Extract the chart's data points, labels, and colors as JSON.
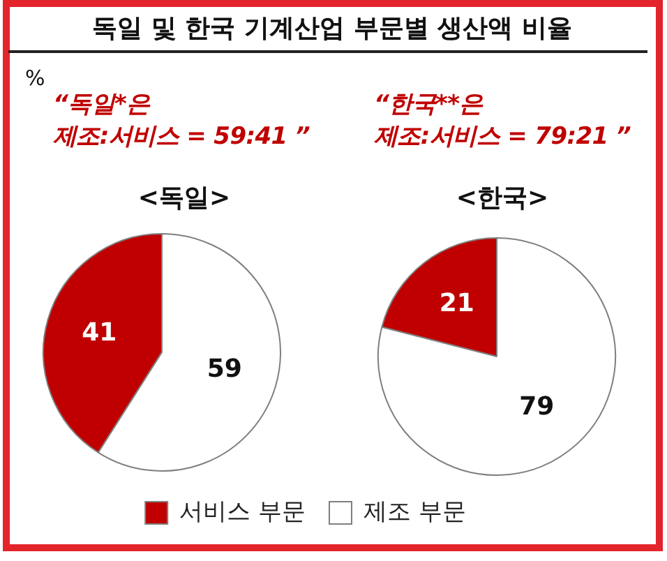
{
  "chart_data": {
    "type": "pie",
    "title": "독일 및 한국 기계산업 부문별 생산액 비율",
    "categories": [
      "서비스 부문",
      "제조 부문"
    ],
    "colors": [
      "#c00000",
      "#ffffff"
    ],
    "series": [
      {
        "name": "<독일>",
        "values": [
          41,
          59
        ]
      },
      {
        "name": "<한국>",
        "values": [
          21,
          79
        ]
      }
    ],
    "data_labels": true,
    "legend": "bottom",
    "annotations": [
      "%",
      "“독일*은\n제조:서비스 = 59:41 ”",
      "“한국**은\n제조:서비스 = 79:21 ”"
    ]
  }
}
